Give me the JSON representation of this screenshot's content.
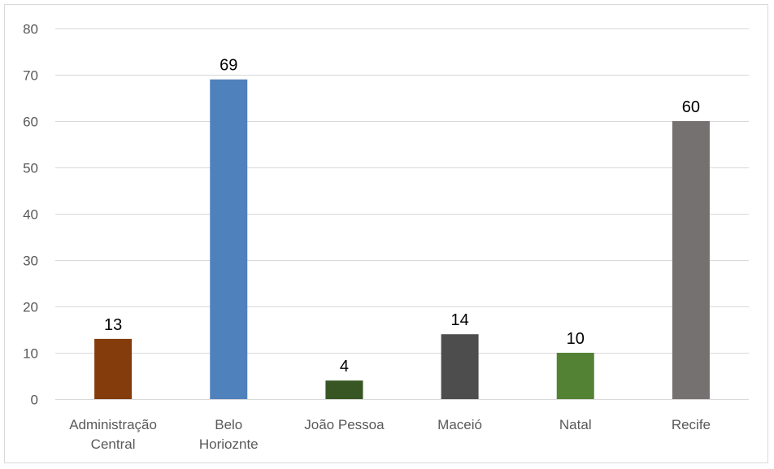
{
  "chart_data": {
    "type": "bar",
    "categories": [
      [
        "Administração",
        "Central"
      ],
      [
        "Belo",
        "Horioznte"
      ],
      [
        "João Pessoa"
      ],
      [
        "Maceió"
      ],
      [
        "Natal"
      ],
      [
        "Recife"
      ]
    ],
    "values": [
      13,
      69,
      4,
      14,
      10,
      60
    ],
    "colors": [
      "#843C0C",
      "#4F81BD",
      "#375623",
      "#4D4D4D",
      "#548235",
      "#767171"
    ],
    "ylim": [
      0,
      80
    ],
    "yticks": [
      0,
      10,
      20,
      30,
      40,
      50,
      60,
      70,
      80
    ],
    "grid": true,
    "data_labels": true,
    "title": "",
    "xlabel": "",
    "ylabel": ""
  }
}
